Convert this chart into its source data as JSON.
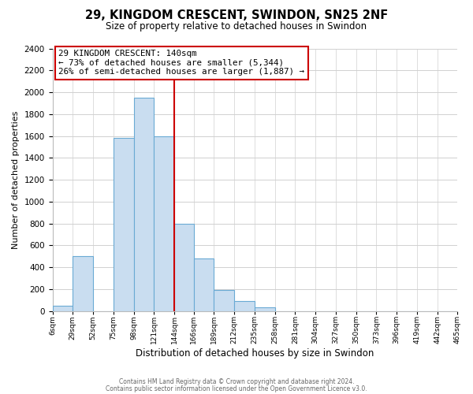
{
  "title": "29, KINGDOM CRESCENT, SWINDON, SN25 2NF",
  "subtitle": "Size of property relative to detached houses in Swindon",
  "xlabel": "Distribution of detached houses by size in Swindon",
  "ylabel": "Number of detached properties",
  "bar_color": "#c9ddf0",
  "bar_edge_color": "#6aaad4",
  "background_color": "#ffffff",
  "grid_color": "#d0d0d0",
  "annotation_box_edge": "#cc0000",
  "vline_color": "#cc0000",
  "bin_edges": [
    6,
    29,
    52,
    75,
    98,
    121,
    144,
    166,
    189,
    212,
    235,
    258,
    281,
    304,
    327,
    350,
    373,
    396,
    419,
    442,
    465
  ],
  "bar_heights": [
    50,
    500,
    0,
    1580,
    1950,
    1600,
    800,
    480,
    190,
    90,
    30,
    0,
    0,
    0,
    0,
    0,
    0,
    0,
    0,
    0
  ],
  "vline_x": 144,
  "annotation_line1": "29 KINGDOM CRESCENT: 140sqm",
  "annotation_line2": "← 73% of detached houses are smaller (5,344)",
  "annotation_line3": "26% of semi-detached houses are larger (1,887) →",
  "ylim": [
    0,
    2400
  ],
  "yticks": [
    0,
    200,
    400,
    600,
    800,
    1000,
    1200,
    1400,
    1600,
    1800,
    2000,
    2200,
    2400
  ],
  "footer1": "Contains HM Land Registry data © Crown copyright and database right 2024.",
  "footer2": "Contains public sector information licensed under the Open Government Licence v3.0.",
  "tick_labels": [
    "6sqm",
    "29sqm",
    "52sqm",
    "75sqm",
    "98sqm",
    "121sqm",
    "144sqm",
    "166sqm",
    "189sqm",
    "212sqm",
    "235sqm",
    "258sqm",
    "281sqm",
    "304sqm",
    "327sqm",
    "350sqm",
    "373sqm",
    "396sqm",
    "419sqm",
    "442sqm",
    "465sqm"
  ]
}
